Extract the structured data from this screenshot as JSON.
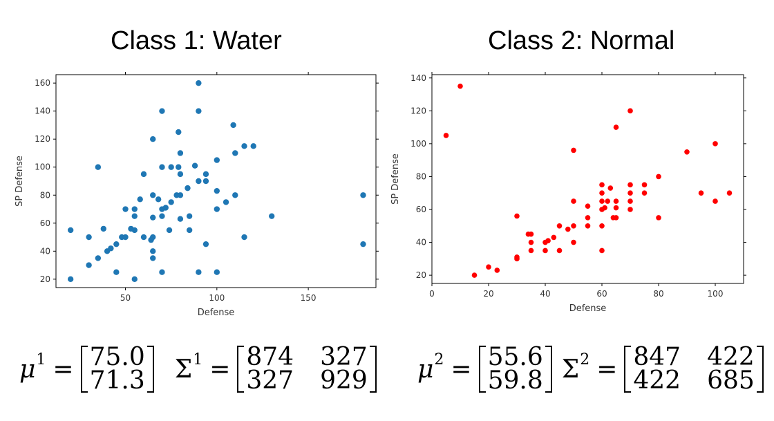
{
  "titles": {
    "left": "Class 1: Water",
    "right": "Class 2: Normal"
  },
  "chart_data": [
    {
      "type": "scatter",
      "title": "Class 1: Water",
      "xlabel": "Defense",
      "ylabel": "SP Defense",
      "xlim": [
        12,
        187
      ],
      "ylim": [
        14,
        166
      ],
      "xticks": [
        50,
        100,
        150
      ],
      "yticks": [
        20,
        40,
        60,
        80,
        100,
        120,
        140,
        160
      ],
      "color": "#1f77b4",
      "grid": false,
      "points": [
        [
          20,
          55
        ],
        [
          20,
          20
        ],
        [
          30,
          50
        ],
        [
          30,
          30
        ],
        [
          35,
          35
        ],
        [
          35,
          100
        ],
        [
          38,
          56
        ],
        [
          40,
          40
        ],
        [
          42,
          42
        ],
        [
          45,
          45
        ],
        [
          45,
          25
        ],
        [
          48,
          50
        ],
        [
          50,
          50
        ],
        [
          50,
          70
        ],
        [
          53,
          56
        ],
        [
          55,
          55
        ],
        [
          55,
          65
        ],
        [
          55,
          70
        ],
        [
          55,
          20
        ],
        [
          58,
          77
        ],
        [
          60,
          50
        ],
        [
          60,
          95
        ],
        [
          64,
          48
        ],
        [
          65,
          50
        ],
        [
          65,
          40
        ],
        [
          65,
          35
        ],
        [
          65,
          64
        ],
        [
          65,
          80
        ],
        [
          65,
          120
        ],
        [
          68,
          77
        ],
        [
          70,
          140
        ],
        [
          70,
          100
        ],
        [
          70,
          65
        ],
        [
          70,
          70
        ],
        [
          70,
          25
        ],
        [
          72,
          71
        ],
        [
          74,
          55
        ],
        [
          75,
          100
        ],
        [
          75,
          75
        ],
        [
          78,
          80
        ],
        [
          79,
          125
        ],
        [
          79,
          100
        ],
        [
          80,
          110
        ],
        [
          80,
          63
        ],
        [
          80,
          80
        ],
        [
          80,
          95
        ],
        [
          84,
          85
        ],
        [
          85,
          65
        ],
        [
          85,
          55
        ],
        [
          88,
          101
        ],
        [
          90,
          160
        ],
        [
          90,
          140
        ],
        [
          90,
          90
        ],
        [
          90,
          25
        ],
        [
          94,
          45
        ],
        [
          94,
          95
        ],
        [
          94,
          90
        ],
        [
          100,
          105
        ],
        [
          100,
          83
        ],
        [
          100,
          70
        ],
        [
          100,
          25
        ],
        [
          105,
          75
        ],
        [
          110,
          80
        ],
        [
          110,
          110
        ],
        [
          109,
          130
        ],
        [
          115,
          115
        ],
        [
          115,
          50
        ],
        [
          120,
          115
        ],
        [
          130,
          65
        ],
        [
          180,
          80
        ],
        [
          180,
          45
        ]
      ]
    },
    {
      "type": "scatter",
      "title": "Class 2: Normal",
      "xlabel": "Defense",
      "ylabel": "SP Defense",
      "xlim": [
        0,
        110
      ],
      "ylim": [
        15,
        142
      ],
      "xticks": [
        0,
        20,
        40,
        60,
        80,
        100
      ],
      "yticks": [
        20,
        40,
        60,
        80,
        100,
        120,
        140
      ],
      "color": "#ff0000",
      "grid": false,
      "points": [
        [
          5,
          105
        ],
        [
          10,
          135
        ],
        [
          15,
          20
        ],
        [
          20,
          25
        ],
        [
          23,
          23
        ],
        [
          30,
          56
        ],
        [
          30,
          30
        ],
        [
          30,
          31
        ],
        [
          34,
          45
        ],
        [
          35,
          45
        ],
        [
          35,
          40
        ],
        [
          35,
          35
        ],
        [
          40,
          35
        ],
        [
          40,
          40
        ],
        [
          41,
          41
        ],
        [
          43,
          43
        ],
        [
          45,
          50
        ],
        [
          45,
          35
        ],
        [
          48,
          48
        ],
        [
          50,
          96
        ],
        [
          50,
          65
        ],
        [
          50,
          50
        ],
        [
          50,
          40
        ],
        [
          55,
          62
        ],
        [
          55,
          55
        ],
        [
          55,
          50
        ],
        [
          60,
          75
        ],
        [
          60,
          70
        ],
        [
          60,
          65
        ],
        [
          60,
          60
        ],
        [
          60,
          50
        ],
        [
          60,
          35
        ],
        [
          61,
          61
        ],
        [
          62,
          65
        ],
        [
          63,
          73
        ],
        [
          64,
          55
        ],
        [
          65,
          110
        ],
        [
          65,
          65
        ],
        [
          65,
          61
        ],
        [
          65,
          55
        ],
        [
          70,
          120
        ],
        [
          70,
          75
        ],
        [
          70,
          70
        ],
        [
          70,
          65
        ],
        [
          70,
          60
        ],
        [
          75,
          75
        ],
        [
          75,
          70
        ],
        [
          80,
          80
        ],
        [
          80,
          55
        ],
        [
          90,
          95
        ],
        [
          95,
          70
        ],
        [
          100,
          100
        ],
        [
          100,
          65
        ],
        [
          105,
          70
        ]
      ]
    }
  ],
  "formulas": {
    "class1": {
      "mu_symbol": "μ",
      "mu_sup": "1",
      "equals": "=",
      "mu": [
        "75.0",
        "71.3"
      ],
      "sigma_symbol": "Σ",
      "sigma_sup": "1",
      "sigma": [
        "874",
        "327",
        "327",
        "929"
      ]
    },
    "class2": {
      "mu_symbol": "μ",
      "mu_sup": "2",
      "equals": "=",
      "mu": [
        "55.6",
        "59.8"
      ],
      "sigma_symbol": "Σ",
      "sigma_sup": "2",
      "sigma": [
        "847",
        "422",
        "422",
        "685"
      ]
    }
  }
}
